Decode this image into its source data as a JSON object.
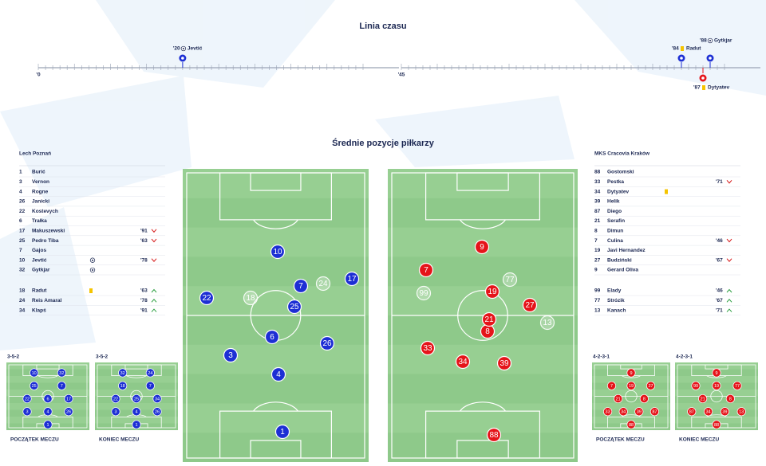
{
  "timeline": {
    "title": "Linia czasu",
    "halves": [
      {
        "start": {
          "value": 0,
          "label": "'0"
        },
        "events": [
          {
            "minute": 20,
            "label": "'20",
            "player": "Jevtić",
            "icon": "goal",
            "side": "home"
          }
        ]
      },
      {
        "start": {
          "value": 45,
          "label": "'45"
        },
        "events": [
          {
            "minute": 84,
            "label": "'84",
            "player": "Radut",
            "icon": "yellow",
            "side": "home"
          },
          {
            "minute": 88,
            "label": "'88",
            "player": "Gytkjar",
            "icon": "goal",
            "side": "home"
          },
          {
            "minute": 87,
            "label": "'87",
            "player": "Dytyatev",
            "icon": "yellow",
            "side": "away"
          }
        ]
      }
    ]
  },
  "positions_title": "Średnie pozycje piłkarzy",
  "teams": [
    {
      "name": "Lech Poznań",
      "color": "#1d2fd4",
      "lineup": [
        {
          "num": "1",
          "name": "Burić"
        },
        {
          "num": "3",
          "name": "Vernon"
        },
        {
          "num": "4",
          "name": "Rogne"
        },
        {
          "num": "26",
          "name": "Janicki"
        },
        {
          "num": "22",
          "name": "Kostevych"
        },
        {
          "num": "6",
          "name": "Trałka"
        },
        {
          "num": "17",
          "name": "Makuszewski",
          "sub": "'91",
          "dir": "out"
        },
        {
          "num": "25",
          "name": "Pedro Tiba",
          "sub": "'63",
          "dir": "out"
        },
        {
          "num": "7",
          "name": "Gajos"
        },
        {
          "num": "10",
          "name": "Jevtić",
          "icon": "goal",
          "sub": "'78",
          "dir": "out"
        },
        {
          "num": "32",
          "name": "Gytkjar",
          "icon": "goal"
        }
      ],
      "subs": [
        {
          "num": "18",
          "name": "Radut",
          "icon": "yellow",
          "sub": "'63",
          "dir": "in"
        },
        {
          "num": "24",
          "name": "Reis Amaral",
          "sub": "'78",
          "dir": "in"
        },
        {
          "num": "34",
          "name": "Klapś",
          "sub": "'91",
          "dir": "in"
        }
      ],
      "pitch": [
        {
          "num": "1",
          "sub": false
        },
        {
          "num": "4",
          "sub": false
        },
        {
          "num": "3",
          "sub": false
        },
        {
          "num": "6",
          "sub": false
        },
        {
          "num": "26",
          "sub": false
        },
        {
          "num": "22",
          "sub": false
        },
        {
          "num": "18",
          "sub": true
        },
        {
          "num": "25",
          "sub": false
        },
        {
          "num": "7",
          "sub": false
        },
        {
          "num": "24",
          "sub": true
        },
        {
          "num": "17",
          "sub": false
        },
        {
          "num": "10",
          "sub": false
        }
      ],
      "formations": [
        {
          "name": "3-5-2",
          "caption": "POCZĄTEK MECZU",
          "rows": [
            [
              "10",
              "32"
            ],
            [
              "25",
              "7"
            ],
            [
              "22",
              "6",
              "17"
            ],
            [
              "3",
              "4",
              "26"
            ],
            [
              "1"
            ]
          ]
        },
        {
          "name": "3-5-2",
          "caption": "KONIEC MECZU",
          "rows": [
            [
              "32",
              "24"
            ],
            [
              "18",
              "7"
            ],
            [
              "22",
              "25",
              "34"
            ],
            [
              "3",
              "4",
              "26"
            ],
            [
              "1"
            ]
          ]
        }
      ]
    },
    {
      "name": "MKS Cracovia Kraków",
      "color": "#e5141a",
      "lineup": [
        {
          "num": "88",
          "name": "Gostomski"
        },
        {
          "num": "33",
          "name": "Pestka",
          "sub": "'71",
          "dir": "out"
        },
        {
          "num": "34",
          "name": "Dytyatev",
          "icon": "yellow"
        },
        {
          "num": "39",
          "name": "Helik"
        },
        {
          "num": "87",
          "name": "Diego"
        },
        {
          "num": "21",
          "name": "Serafin"
        },
        {
          "num": "8",
          "name": "Dimun"
        },
        {
          "num": "7",
          "name": "Culina",
          "sub": "'46",
          "dir": "out"
        },
        {
          "num": "19",
          "name": "Javi Hernandez"
        },
        {
          "num": "27",
          "name": "Budziński",
          "sub": "'67",
          "dir": "out"
        },
        {
          "num": "9",
          "name": "Gerard Oliva"
        }
      ],
      "subs": [
        {
          "num": "99",
          "name": "Elady",
          "sub": "'46",
          "dir": "in"
        },
        {
          "num": "77",
          "name": "Strózik",
          "sub": "'67",
          "dir": "in"
        },
        {
          "num": "13",
          "name": "Kanach",
          "sub": "'71",
          "dir": "in"
        }
      ],
      "pitch": [
        {
          "num": "88",
          "sub": false
        },
        {
          "num": "34",
          "sub": false
        },
        {
          "num": "39",
          "sub": false
        },
        {
          "num": "33",
          "sub": false
        },
        {
          "num": "8",
          "sub": false
        },
        {
          "num": "21",
          "sub": false
        },
        {
          "num": "13",
          "sub": true
        },
        {
          "num": "27",
          "sub": false
        },
        {
          "num": "19",
          "sub": false
        },
        {
          "num": "99",
          "sub": true
        },
        {
          "num": "77",
          "sub": true
        },
        {
          "num": "7",
          "sub": false
        },
        {
          "num": "9",
          "sub": false
        }
      ],
      "formations": [
        {
          "name": "4-2-3-1",
          "caption": "POCZĄTEK MECZU",
          "rows": [
            [
              "9"
            ],
            [
              "7",
              "19",
              "27"
            ],
            [
              "21",
              "8"
            ],
            [
              "33",
              "34",
              "39",
              "87"
            ],
            [
              "88"
            ]
          ]
        },
        {
          "name": "4-2-3-1",
          "caption": "KONIEC MECZU",
          "rows": [
            [
              "9"
            ],
            [
              "99",
              "19",
              "77"
            ],
            [
              "21",
              "8"
            ],
            [
              "87",
              "34",
              "39",
              "13"
            ],
            [
              "88"
            ]
          ]
        }
      ]
    }
  ]
}
